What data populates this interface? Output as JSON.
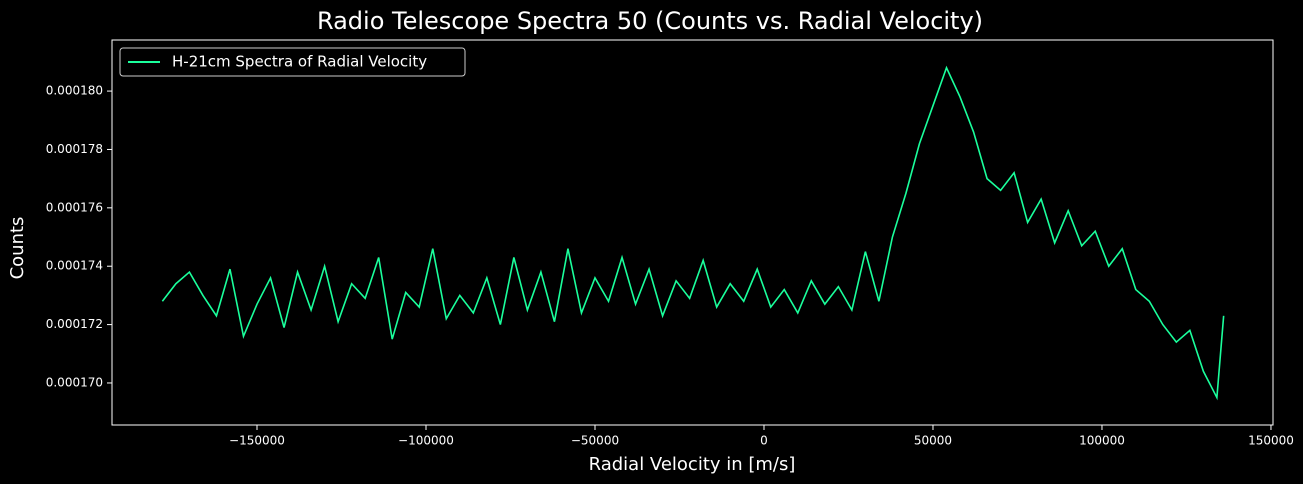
{
  "chart_data": {
    "type": "line",
    "title": "Radio Telescope Spectra 50 (Counts vs. Radial Velocity)",
    "xlabel": "Radial Velocity in [m/s]",
    "ylabel": "Counts",
    "legend": "upper left",
    "x": [
      -178000,
      -174000,
      -170000,
      -166000,
      -162000,
      -158000,
      -154000,
      -150000,
      -146000,
      -142000,
      -138000,
      -134000,
      -130000,
      -126000,
      -122000,
      -118000,
      -114000,
      -110000,
      -106000,
      -102000,
      -98000,
      -94000,
      -90000,
      -86000,
      -82000,
      -78000,
      -74000,
      -70000,
      -66000,
      -62000,
      -58000,
      -54000,
      -50000,
      -46000,
      -42000,
      -38000,
      -34000,
      -30000,
      -26000,
      -22000,
      -18000,
      -14000,
      -10000,
      -6000,
      -2000,
      2000,
      6000,
      10000,
      14000,
      18000,
      22000,
      26000,
      30000,
      34000,
      38000,
      42000,
      46000,
      50000,
      54000,
      58000,
      62000,
      66000,
      70000,
      74000,
      78000,
      82000,
      86000,
      90000,
      94000,
      98000,
      102000,
      106000,
      110000,
      114000,
      118000,
      122000,
      126000,
      130000,
      134000,
      136000
    ],
    "series": [
      {
        "name": "H-21cm Spectra of Radial Velocity",
        "color": "#1aff9c",
        "values": [
          0.0001728,
          0.0001734,
          0.0001738,
          0.000173,
          0.0001723,
          0.0001739,
          0.0001716,
          0.0001727,
          0.0001736,
          0.0001719,
          0.0001738,
          0.0001725,
          0.000174,
          0.0001721,
          0.0001734,
          0.0001729,
          0.0001743,
          0.0001715,
          0.0001731,
          0.0001726,
          0.0001746,
          0.0001722,
          0.000173,
          0.0001724,
          0.0001736,
          0.000172,
          0.0001743,
          0.0001725,
          0.0001738,
          0.0001721,
          0.0001746,
          0.0001724,
          0.0001736,
          0.0001728,
          0.0001743,
          0.0001727,
          0.0001739,
          0.0001723,
          0.0001735,
          0.0001729,
          0.0001742,
          0.0001726,
          0.0001734,
          0.0001728,
          0.0001739,
          0.0001726,
          0.0001732,
          0.0001724,
          0.0001735,
          0.0001727,
          0.0001733,
          0.0001725,
          0.0001745,
          0.0001728,
          0.000175,
          0.0001765,
          0.0001782,
          0.0001795,
          0.0001808,
          0.0001798,
          0.0001786,
          0.000177,
          0.0001766,
          0.0001772,
          0.0001755,
          0.0001763,
          0.0001748,
          0.0001759,
          0.0001747,
          0.0001752,
          0.000174,
          0.0001746,
          0.0001732,
          0.0001728,
          0.000172,
          0.0001714,
          0.0001718,
          0.0001704,
          0.0001695,
          0.0001723
        ]
      }
    ],
    "xlim": [
      -192900,
      150600
    ],
    "ylim": [
      0.00016856,
      0.00018175
    ],
    "xticks": [
      {
        "value": -150000,
        "label": "−150000"
      },
      {
        "value": -100000,
        "label": "−100000"
      },
      {
        "value": -50000,
        "label": "−50000"
      },
      0,
      50000,
      100000,
      150000
    ],
    "yticks": [
      {
        "value": 0.00017,
        "label": "0.000170"
      },
      {
        "value": 0.000172,
        "label": "0.000172"
      },
      {
        "value": 0.000174,
        "label": "0.000174"
      },
      {
        "value": 0.000176,
        "label": "0.000176"
      },
      {
        "value": 0.000178,
        "label": "0.000178"
      },
      {
        "value": 0.00018,
        "label": "0.000180"
      }
    ]
  }
}
